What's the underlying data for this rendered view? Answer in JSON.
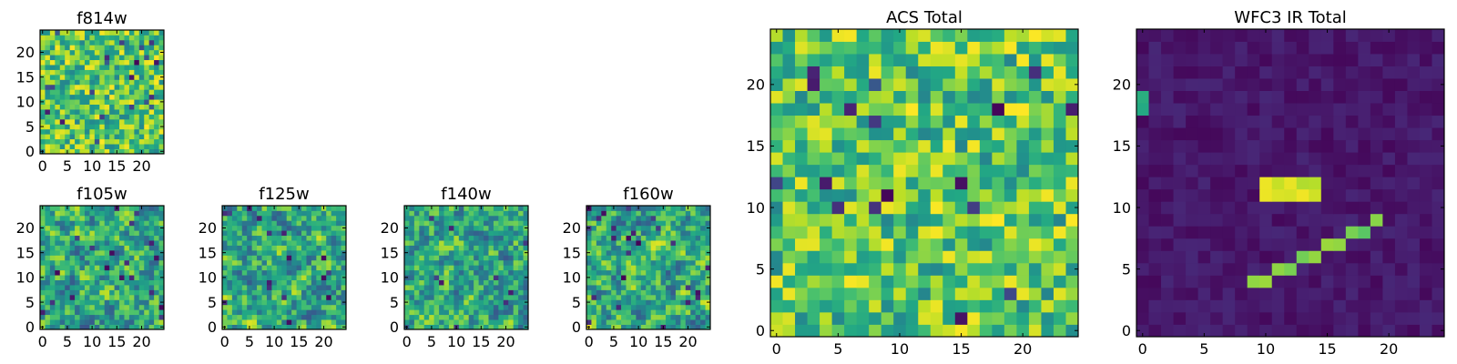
{
  "chart_data": [
    {
      "type": "heatmap",
      "title": "f814w",
      "pattern": "noise",
      "seed": 11,
      "grid": [
        25,
        25
      ],
      "xticks": [
        0,
        5,
        10,
        15,
        20
      ],
      "yticks": [
        0,
        5,
        10,
        15,
        20
      ],
      "xlim": [
        -0.5,
        24.5
      ],
      "ylim": [
        -0.5,
        24.5
      ],
      "colormap": "viridis"
    },
    {
      "type": "heatmap",
      "title": "f105w",
      "pattern": "smooth-noise",
      "seed": 23,
      "grid": [
        25,
        25
      ],
      "xticks": [
        0,
        5,
        10,
        15,
        20
      ],
      "yticks": [
        0,
        5,
        10,
        15,
        20
      ],
      "xlim": [
        -0.5,
        24.5
      ],
      "ylim": [
        -0.5,
        24.5
      ],
      "colormap": "viridis"
    },
    {
      "type": "heatmap",
      "title": "f125w",
      "pattern": "smooth-noise",
      "seed": 37,
      "grid": [
        25,
        25
      ],
      "xticks": [
        0,
        5,
        10,
        15,
        20
      ],
      "yticks": [
        0,
        5,
        10,
        15,
        20
      ],
      "xlim": [
        -0.5,
        24.5
      ],
      "ylim": [
        -0.5,
        24.5
      ],
      "colormap": "viridis"
    },
    {
      "type": "heatmap",
      "title": "f140w",
      "pattern": "smooth-noise",
      "seed": 41,
      "grid": [
        25,
        25
      ],
      "xticks": [
        0,
        5,
        10,
        15,
        20
      ],
      "yticks": [
        0,
        5,
        10,
        15,
        20
      ],
      "xlim": [
        -0.5,
        24.5
      ],
      "ylim": [
        -0.5,
        24.5
      ],
      "colormap": "viridis"
    },
    {
      "type": "heatmap",
      "title": "f160w",
      "pattern": "smooth-noise",
      "seed": 53,
      "grid": [
        25,
        25
      ],
      "xticks": [
        0,
        5,
        10,
        15,
        20
      ],
      "yticks": [
        0,
        5,
        10,
        15,
        20
      ],
      "xlim": [
        -0.5,
        24.5
      ],
      "ylim": [
        -0.5,
        24.5
      ],
      "colormap": "viridis"
    },
    {
      "type": "heatmap",
      "title": "ACS Total",
      "pattern": "noise",
      "seed": 67,
      "grid": [
        25,
        25
      ],
      "xticks": [
        0,
        5,
        10,
        15,
        20
      ],
      "yticks": [
        0,
        5,
        10,
        15,
        20
      ],
      "xlim": [
        -0.5,
        24.5
      ],
      "ylim": [
        -0.5,
        24.5
      ],
      "colormap": "viridis"
    },
    {
      "type": "heatmap",
      "title": "WFC3 IR Total",
      "pattern": "streak",
      "seed": 79,
      "grid": [
        25,
        25
      ],
      "xticks": [
        0,
        5,
        10,
        15,
        20
      ],
      "yticks": [
        0,
        5,
        10,
        15,
        20
      ],
      "xlim": [
        -0.5,
        24.5
      ],
      "ylim": [
        -0.5,
        24.5
      ],
      "colormap": "viridis",
      "features": [
        {
          "kind": "bar",
          "cells": [
            [
              10,
              12
            ],
            [
              11,
              12
            ],
            [
              12,
              12
            ],
            [
              13,
              12
            ],
            [
              14,
              12
            ],
            [
              10,
              11
            ],
            [
              11,
              11
            ],
            [
              12,
              11
            ],
            [
              13,
              11
            ],
            [
              14,
              11
            ]
          ],
          "level": 0.92
        },
        {
          "kind": "diagonal",
          "cells": [
            [
              9,
              4
            ],
            [
              10,
              4
            ],
            [
              11,
              5
            ],
            [
              12,
              5
            ],
            [
              13,
              6
            ],
            [
              14,
              6
            ],
            [
              15,
              7
            ],
            [
              16,
              7
            ],
            [
              17,
              8
            ],
            [
              18,
              8
            ],
            [
              19,
              9
            ]
          ],
          "level": 0.8
        },
        {
          "kind": "edge",
          "cells": [
            [
              0,
              18
            ],
            [
              0,
              19
            ]
          ],
          "level": 0.6
        }
      ]
    }
  ]
}
